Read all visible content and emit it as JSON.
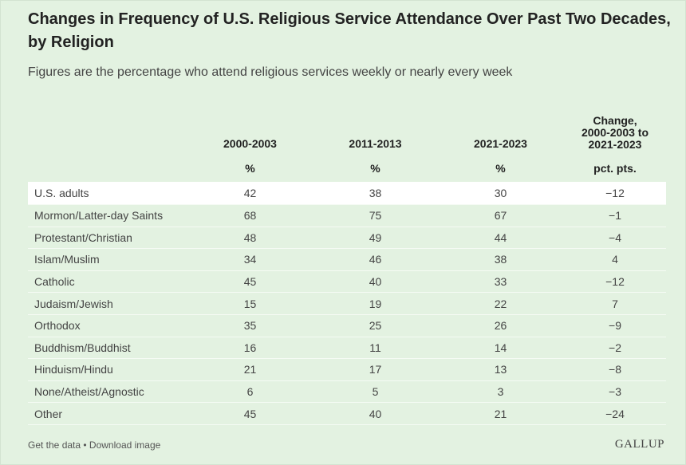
{
  "title": "Changes in Frequency of U.S. Religious Service Attendance Over Past Two Decades, by Religion",
  "subtitle": "Figures are the percentage who attend religious services weekly or nearly every week",
  "chart_data": {
    "type": "table",
    "columns": [
      "2000-2003",
      "2011-2013",
      "2021-2023",
      "Change,\n2000-2003 to\n2021-2023"
    ],
    "units": [
      "%",
      "%",
      "%",
      "pct. pts."
    ],
    "rows": [
      {
        "label": "U.S. adults",
        "values": [
          "42",
          "38",
          "30",
          "−12"
        ],
        "highlight": true
      },
      {
        "label": "Mormon/Latter-day Saints",
        "values": [
          "68",
          "75",
          "67",
          "−1"
        ]
      },
      {
        "label": "Protestant/Christian",
        "values": [
          "48",
          "49",
          "44",
          "−4"
        ]
      },
      {
        "label": "Islam/Muslim",
        "values": [
          "34",
          "46",
          "38",
          "4"
        ]
      },
      {
        "label": "Catholic",
        "values": [
          "45",
          "40",
          "33",
          "−12"
        ]
      },
      {
        "label": "Judaism/Jewish",
        "values": [
          "15",
          "19",
          "22",
          "7"
        ]
      },
      {
        "label": "Orthodox",
        "values": [
          "35",
          "25",
          "26",
          "−9"
        ]
      },
      {
        "label": "Buddhism/Buddhist",
        "values": [
          "16",
          "11",
          "14",
          "−2"
        ]
      },
      {
        "label": "Hinduism/Hindu",
        "values": [
          "21",
          "17",
          "13",
          "−8"
        ]
      },
      {
        "label": "None/Atheist/Agnostic",
        "values": [
          "6",
          "5",
          "3",
          "−3"
        ]
      },
      {
        "label": "Other",
        "values": [
          "45",
          "40",
          "21",
          "−24"
        ]
      }
    ]
  },
  "footer": {
    "get_data": "Get the data",
    "separator": " • ",
    "download": "Download image",
    "logo": "GALLUP"
  },
  "colors": {
    "background": "#e3f2e1",
    "highlight_row": "#ffffff"
  }
}
